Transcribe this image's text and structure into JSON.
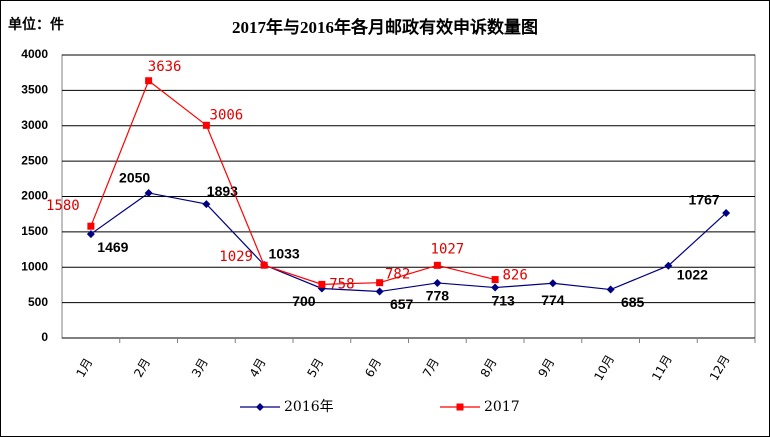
{
  "chart_data": {
    "type": "line",
    "title": "2017年与2016年各月邮政有效申诉数量图",
    "unit_label": "单位：件",
    "categories": [
      "1月",
      "2月",
      "3月",
      "4月",
      "5月",
      "6月",
      "7月",
      "8月",
      "9月",
      "10月",
      "11月",
      "12月"
    ],
    "series": [
      {
        "name": "2016年",
        "color": "#000080",
        "marker": "diamond",
        "values": [
          1469,
          2050,
          1893,
          1033,
          700,
          657,
          778,
          713,
          774,
          685,
          1022,
          1767
        ]
      },
      {
        "name": "2017",
        "color": "#ff0000",
        "marker": "square",
        "values": [
          1580,
          3636,
          3006,
          1029,
          758,
          782,
          1027,
          826,
          null,
          null,
          null,
          null
        ]
      }
    ],
    "ylim": [
      0,
      4000
    ],
    "yticks": [
      0,
      500,
      1000,
      1500,
      2000,
      2500,
      3000,
      3500,
      4000
    ],
    "grid": true,
    "legend": "bottom"
  }
}
